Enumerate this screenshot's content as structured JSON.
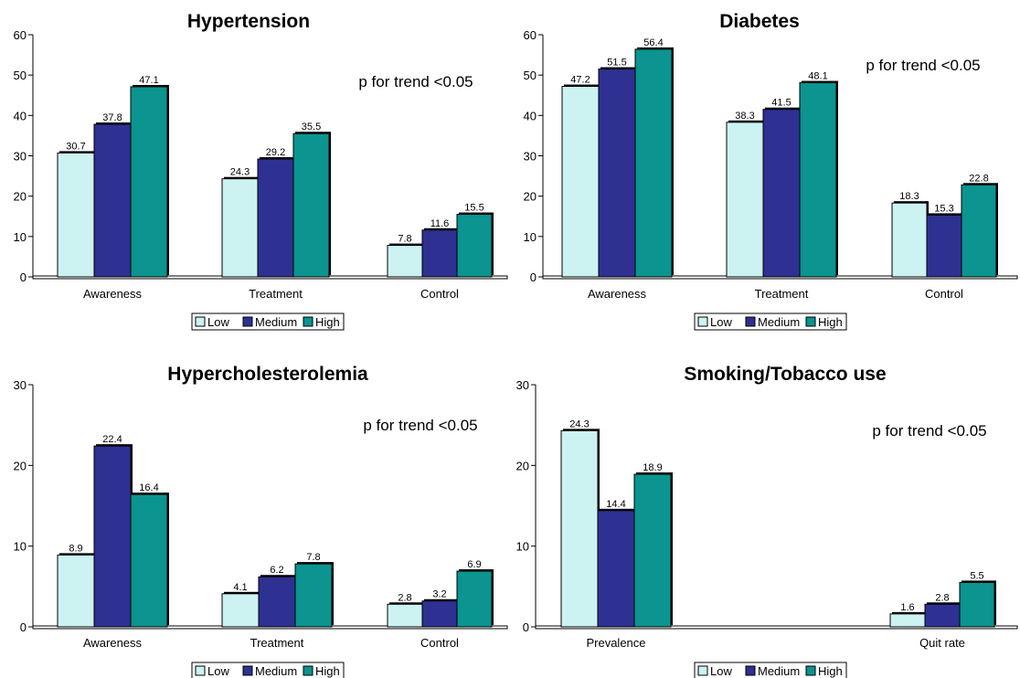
{
  "chart_data": [
    {
      "type": "bar",
      "title": "Hypertension",
      "annotation": "p for trend <0.05",
      "categories": [
        "Awareness",
        "Treatment",
        "Control"
      ],
      "series": [
        {
          "name": "Low",
          "values": [
            30.7,
            24.3,
            7.8
          ]
        },
        {
          "name": "Medium",
          "values": [
            37.8,
            29.2,
            11.6
          ]
        },
        {
          "name": "High",
          "values": [
            47.1,
            35.5,
            15.5
          ]
        }
      ],
      "ylim": [
        0,
        60
      ],
      "yticks": [
        "0",
        "10",
        "20",
        "30",
        "40",
        "50",
        "60"
      ],
      "data_labels": [
        [
          "30.7",
          "24.3",
          "7.8"
        ],
        [
          "37.8",
          "29.2",
          "11.6"
        ],
        [
          "47.1",
          "35.5",
          "15.5"
        ]
      ],
      "grid": false,
      "legend_position": "bottom"
    },
    {
      "type": "bar",
      "title": "Diabetes",
      "annotation": "p for trend <0.05",
      "categories": [
        "Awareness",
        "Treatment",
        "Control"
      ],
      "series": [
        {
          "name": "Low",
          "values": [
            47.2,
            38.3,
            18.3
          ]
        },
        {
          "name": "Medium",
          "values": [
            51.5,
            41.5,
            15.3
          ]
        },
        {
          "name": "High",
          "values": [
            56.4,
            48.1,
            22.8
          ]
        }
      ],
      "ylim": [
        0,
        60
      ],
      "yticks": [
        "0",
        "10",
        "20",
        "30",
        "40",
        "50",
        "60"
      ],
      "data_labels": [
        [
          "47.2",
          "38.3",
          "18.3"
        ],
        [
          "51.5",
          "41.5",
          "15.3"
        ],
        [
          "56.4",
          "48.1",
          "22.8"
        ]
      ],
      "grid": false,
      "legend_position": "bottom"
    },
    {
      "type": "bar",
      "title": "Hypercholesterolemia",
      "annotation": "p for trend <0.05",
      "categories": [
        "Awareness",
        "Treatment",
        "Control"
      ],
      "series": [
        {
          "name": "Low",
          "values": [
            8.9,
            4.1,
            2.8
          ]
        },
        {
          "name": "Medium",
          "values": [
            22.4,
            6.2,
            3.2
          ]
        },
        {
          "name": "High",
          "values": [
            16.4,
            7.8,
            6.9
          ]
        }
      ],
      "ylim": [
        0,
        30
      ],
      "yticks": [
        "0",
        "10",
        "20",
        "30"
      ],
      "data_labels": [
        [
          "8.9",
          "4.1",
          "2.8"
        ],
        [
          "22.4",
          "6.2",
          "3.2"
        ],
        [
          "16.4",
          "7.8",
          "6.9"
        ]
      ],
      "grid": false,
      "legend_position": "bottom"
    },
    {
      "type": "bar",
      "title": "Smoking/Tobacco use",
      "annotation": "p for trend <0.05",
      "categories": [
        "Prevalence",
        "Quit rate"
      ],
      "series": [
        {
          "name": "Low",
          "values": [
            24.3,
            1.6
          ]
        },
        {
          "name": "Medium",
          "values": [
            14.4,
            2.8
          ]
        },
        {
          "name": "High",
          "values": [
            18.9,
            5.5
          ]
        }
      ],
      "ylim": [
        0,
        30
      ],
      "yticks": [
        "0",
        "10",
        "20",
        "30"
      ],
      "data_labels": [
        [
          "24.3",
          "1.6"
        ],
        [
          "14.4",
          "2.8"
        ],
        [
          "18.9",
          "5.5"
        ]
      ],
      "grid": false,
      "legend_position": "bottom"
    }
  ],
  "colors": {
    "Low": "#ccf2f2",
    "Medium": "#2e3192",
    "High": "#0b9490",
    "outline": "#000000"
  }
}
